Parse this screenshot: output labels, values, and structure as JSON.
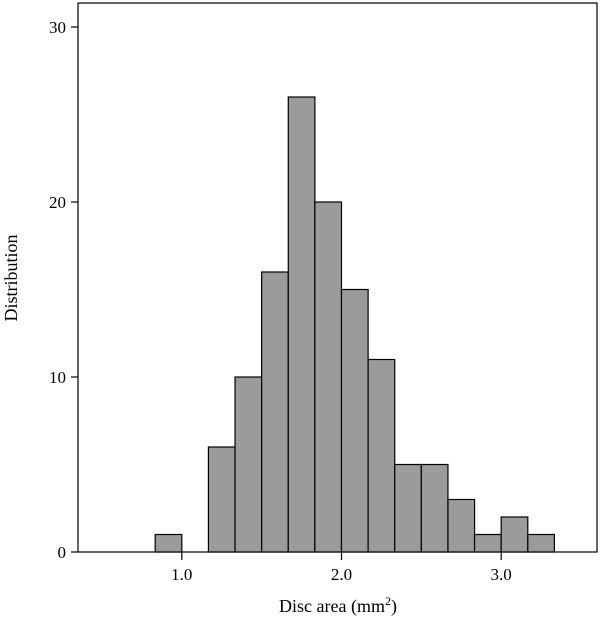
{
  "chart_data": {
    "type": "histogram",
    "title": "",
    "xlabel": "Disc area (mm",
    "xlabel_superscript": "2",
    "xlabel_suffix": ")",
    "ylabel": "Distribution",
    "xlim": [
      0.35,
      3.6
    ],
    "ylim": [
      0,
      30
    ],
    "grid": false,
    "legend": "none",
    "bar_color": "#9b9b9b",
    "edge_color": "#000000",
    "bin_width": 0.1667,
    "bins": [
      {
        "start": 0.8333,
        "end": 1.0,
        "count": 1
      },
      {
        "start": 1.1667,
        "end": 1.3333,
        "count": 6
      },
      {
        "start": 1.3333,
        "end": 1.5,
        "count": 10
      },
      {
        "start": 1.5,
        "end": 1.6667,
        "count": 16
      },
      {
        "start": 1.6667,
        "end": 1.8333,
        "count": 26
      },
      {
        "start": 1.8333,
        "end": 2.0,
        "count": 20
      },
      {
        "start": 2.0,
        "end": 2.1667,
        "count": 15
      },
      {
        "start": 2.1667,
        "end": 2.3333,
        "count": 11
      },
      {
        "start": 2.3333,
        "end": 2.5,
        "count": 5
      },
      {
        "start": 2.5,
        "end": 2.6667,
        "count": 5
      },
      {
        "start": 2.6667,
        "end": 2.8333,
        "count": 3
      },
      {
        "start": 2.8333,
        "end": 3.0,
        "count": 1
      },
      {
        "start": 3.0,
        "end": 3.1667,
        "count": 2
      },
      {
        "start": 3.1667,
        "end": 3.3333,
        "count": 1
      }
    ],
    "x_ticks": [
      {
        "value": 1.0,
        "label": "1.0"
      },
      {
        "value": 2.0,
        "label": "2.0"
      },
      {
        "value": 3.0,
        "label": "3.0"
      }
    ],
    "y_ticks": [
      {
        "value": 0,
        "label": "0"
      },
      {
        "value": 10,
        "label": "10"
      },
      {
        "value": 20,
        "label": "20"
      },
      {
        "value": 30,
        "label": "30"
      }
    ]
  }
}
